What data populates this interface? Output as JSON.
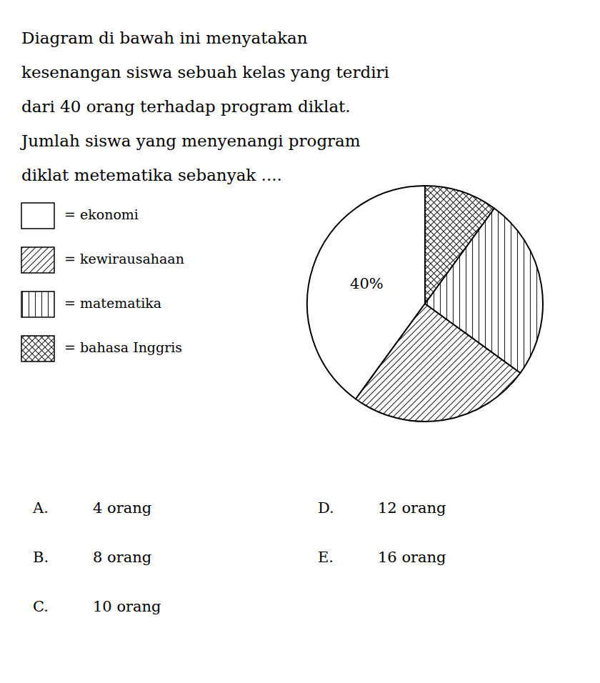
{
  "chart_data": {
    "type": "pie",
    "title": [
      "Diagram di bawah ini menyatakan",
      "kesenangan siswa sebuah kelas yang terdiri",
      "dari 40 orang terhadap program diklat.",
      "Jumlah siswa yang menyenangi program",
      "diklat metematika sebanyak ...."
    ],
    "categories": [
      "= ekonomi",
      "= kewirausahaan",
      "= matematika",
      "= bahasa Inggris"
    ],
    "values": [
      40,
      25,
      25,
      10
    ],
    "value_labels": [
      "40%",
      null,
      null,
      null
    ],
    "annotations": [
      {
        "label": "A.",
        "text": "4 orang"
      },
      {
        "label": "B.",
        "text": "8 orang"
      },
      {
        "label": "C.",
        "text": "10 orang"
      },
      {
        "label": "D.",
        "text": "12 orang"
      },
      {
        "label": "E.",
        "text": "16 orang"
      }
    ]
  }
}
